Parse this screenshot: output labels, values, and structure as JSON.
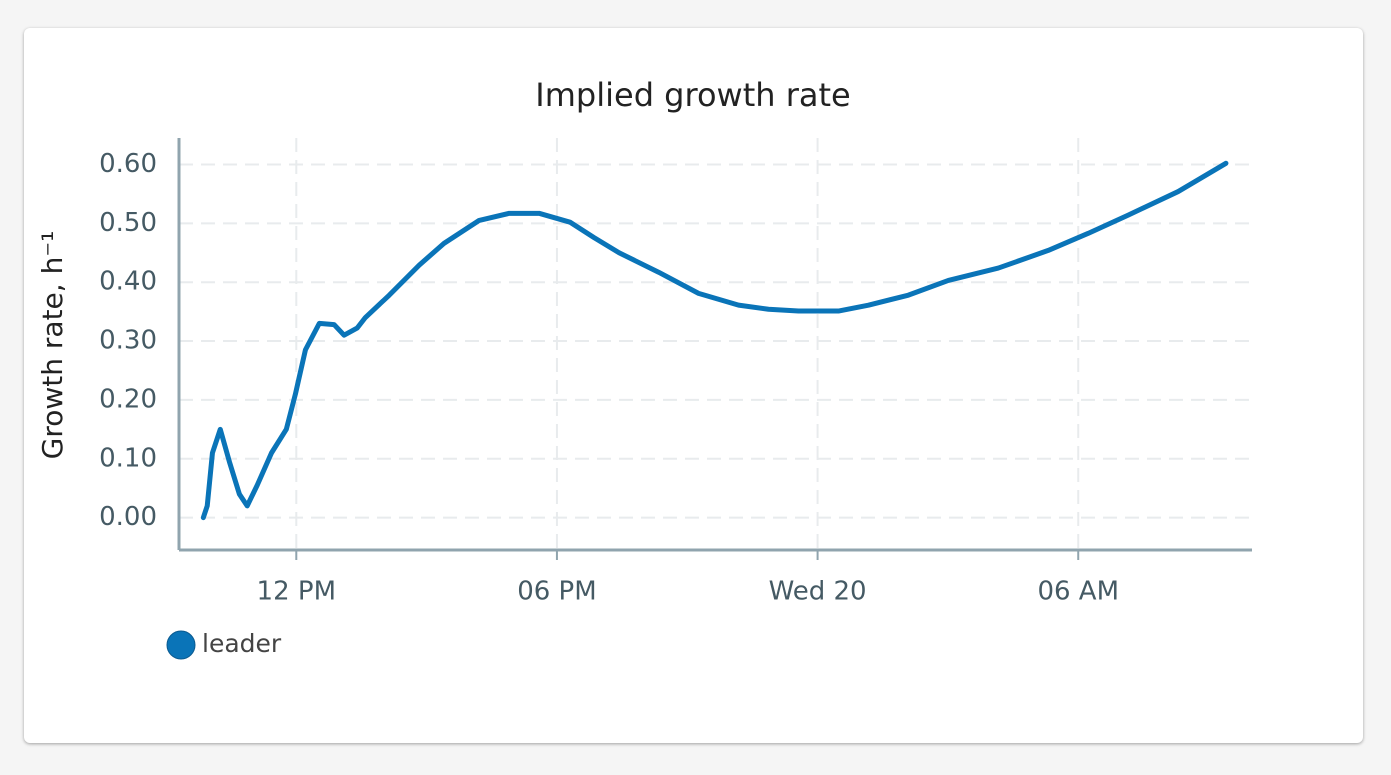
{
  "chart_data": {
    "type": "line",
    "title": "Implied growth rate",
    "y_label": "Growth rate, h⁻¹",
    "x": [
      9.86,
      9.95,
      10.07,
      10.25,
      10.46,
      10.69,
      10.87,
      11.1,
      11.43,
      11.77,
      11.98,
      12.21,
      12.53,
      12.87,
      13.1,
      13.4,
      13.59,
      14.14,
      14.83,
      15.4,
      16.21,
      16.9,
      17.59,
      18.3,
      18.85,
      19.43,
      20.34,
      21.26,
      22.18,
      22.87,
      23.56,
      24.48,
      25.17,
      26.09,
      27.01,
      28.16,
      29.31,
      30.23,
      31.15,
      32.3,
      33.4
    ],
    "series": [
      {
        "name": "leader",
        "color": "#0a74b8",
        "values": [
          0.0,
          0.02,
          0.11,
          0.15,
          0.095,
          0.04,
          0.02,
          0.055,
          0.11,
          0.15,
          0.21,
          0.285,
          0.33,
          0.328,
          0.31,
          0.322,
          0.34,
          0.378,
          0.429,
          0.466,
          0.505,
          0.517,
          0.517,
          0.502,
          0.476,
          0.45,
          0.417,
          0.381,
          0.361,
          0.354,
          0.351,
          0.351,
          0.361,
          0.378,
          0.403,
          0.424,
          0.454,
          0.483,
          0.514,
          0.554,
          0.602
        ]
      }
    ],
    "xlim": [
      9.3,
      34
    ],
    "xticks": [
      {
        "value": 12,
        "label": "12 PM"
      },
      {
        "value": 18,
        "label": "06 PM"
      },
      {
        "value": 24,
        "label": "Wed 20"
      },
      {
        "value": 30,
        "label": "06 AM"
      }
    ],
    "ylim": [
      -0.055,
      0.645
    ],
    "yticks": [
      {
        "value": 0,
        "label": "0.00"
      },
      {
        "value": 0.1,
        "label": "0.10"
      },
      {
        "value": 0.2,
        "label": "0.20"
      },
      {
        "value": 0.3,
        "label": "0.30"
      },
      {
        "value": 0.4,
        "label": "0.40"
      },
      {
        "value": 0.5,
        "label": "0.50"
      },
      {
        "value": 0.6,
        "label": "0.60"
      }
    ],
    "grid": true
  }
}
